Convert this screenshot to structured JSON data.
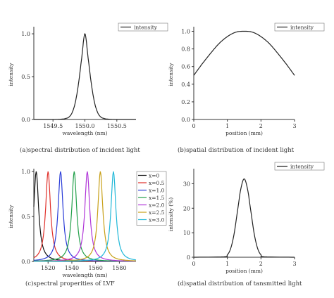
{
  "chart_data": [
    {
      "type": "line",
      "caption": "(a)spectral distribution of incident light",
      "xlabel": "wavelength (nm)",
      "ylabel": "intensity",
      "xlim": [
        1549.2,
        1550.8
      ],
      "ylim": [
        0,
        1.05
      ],
      "xticks": [
        1549.5,
        1550.0,
        1550.5
      ],
      "xtick_labels": [
        "1549.5",
        "1550.0",
        "1550.5"
      ],
      "yticks": [
        0,
        0.5,
        1
      ],
      "ytick_labels": [
        "0.0",
        "0.5",
        "1.0"
      ],
      "legend": [
        "intensity"
      ],
      "legend_position": "top-right",
      "series": [
        {
          "name": "intensity",
          "color": "#222222",
          "x": [
            1549.2,
            1549.5,
            1549.65,
            1549.7,
            1549.75,
            1549.8,
            1549.85,
            1549.9,
            1549.95,
            1550.0,
            1550.05,
            1550.1,
            1550.15,
            1550.2,
            1550.25,
            1550.3,
            1550.35,
            1550.5,
            1550.8
          ],
          "y": [
            0.0,
            0.0,
            0.005,
            0.012,
            0.028,
            0.08,
            0.2,
            0.42,
            0.72,
            1.0,
            0.72,
            0.42,
            0.2,
            0.08,
            0.028,
            0.012,
            0.005,
            0.0,
            0.0
          ]
        }
      ]
    },
    {
      "type": "line",
      "caption": "(b)spatial distribution of incident light",
      "xlabel": "position (mm)",
      "ylabel": "intensity",
      "xlim": [
        0,
        3
      ],
      "ylim": [
        0,
        1.02
      ],
      "xticks": [
        0,
        1,
        2,
        3
      ],
      "xtick_labels": [
        "0",
        "1",
        "2",
        "3"
      ],
      "yticks": [
        0,
        0.2,
        0.4,
        0.6,
        0.8,
        1.0
      ],
      "ytick_labels": [
        "0.0",
        "0.2",
        "0.4",
        "0.6",
        "0.8",
        "1.0"
      ],
      "legend": [
        "intensity"
      ],
      "legend_position": "top-right",
      "series": [
        {
          "name": "intensity",
          "color": "#222222",
          "x": [
            0,
            0.25,
            0.5,
            0.75,
            1.0,
            1.25,
            1.5,
            1.75,
            2.0,
            2.25,
            2.5,
            2.75,
            3.0
          ],
          "y": [
            0.5,
            0.63,
            0.75,
            0.86,
            0.94,
            0.99,
            1.0,
            0.99,
            0.94,
            0.86,
            0.75,
            0.63,
            0.5
          ]
        }
      ]
    },
    {
      "type": "line",
      "caption": "(c)spectral properities of LVF",
      "xlabel": "wavelength (nm)",
      "ylabel": "intensity",
      "xlim": [
        1508,
        1594
      ],
      "ylim": [
        0,
        1.0
      ],
      "xticks": [
        1520,
        1540,
        1560,
        1580
      ],
      "xtick_labels": [
        "1520",
        "1540",
        "1560",
        "1580"
      ],
      "yticks": [
        0,
        0.5,
        1
      ],
      "ytick_labels": [
        "0.0",
        "0.5",
        "1.0"
      ],
      "legend": [
        "x=0",
        "x=0.5",
        "x=1.0",
        "x=1.5",
        "x=2.0",
        "x=2.5",
        "x=3.0"
      ],
      "legend_position": "right",
      "series": [
        {
          "name": "x=0",
          "color": "#111111",
          "peak": 1510,
          "fwhm": 5
        },
        {
          "name": "x=0.5",
          "color": "#e0302a",
          "peak": 1520,
          "fwhm": 5
        },
        {
          "name": "x=1.0",
          "color": "#2a3cd8",
          "peak": 1530.5,
          "fwhm": 5
        },
        {
          "name": "x=1.5",
          "color": "#22a04a",
          "peak": 1542,
          "fwhm": 5
        },
        {
          "name": "x=2.0",
          "color": "#b035d8",
          "peak": 1553,
          "fwhm": 5
        },
        {
          "name": "x=2.5",
          "color": "#c8a018",
          "peak": 1564,
          "fwhm": 5
        },
        {
          "name": "x=3.0",
          "color": "#20b8d8",
          "peak": 1575,
          "fwhm": 5
        }
      ]
    },
    {
      "type": "line",
      "caption": "(d)spatial distribution of tansmitted light",
      "xlabel": "position (mm)",
      "ylabel": "intensity (%)",
      "xlim": [
        0,
        3
      ],
      "ylim": [
        0,
        35
      ],
      "xticks": [
        0,
        1,
        2,
        3
      ],
      "xtick_labels": [
        "0",
        "1",
        "2",
        "3"
      ],
      "yticks": [
        0,
        10,
        20,
        30
      ],
      "ytick_labels": [
        "0",
        "10",
        "20",
        "30"
      ],
      "legend": [
        "intensity"
      ],
      "legend_position": "top-right",
      "series": [
        {
          "name": "intensity",
          "color": "#222222",
          "x": [
            0,
            0.9,
            1.0,
            1.1,
            1.2,
            1.3,
            1.4,
            1.5,
            1.6,
            1.7,
            1.8,
            1.9,
            2.0,
            2.1,
            3.0
          ],
          "y": [
            0,
            0.2,
            1.0,
            3.6,
            9.5,
            18.8,
            27.8,
            32.0,
            27.8,
            18.8,
            9.5,
            3.6,
            1.0,
            0.2,
            0
          ]
        }
      ]
    }
  ]
}
